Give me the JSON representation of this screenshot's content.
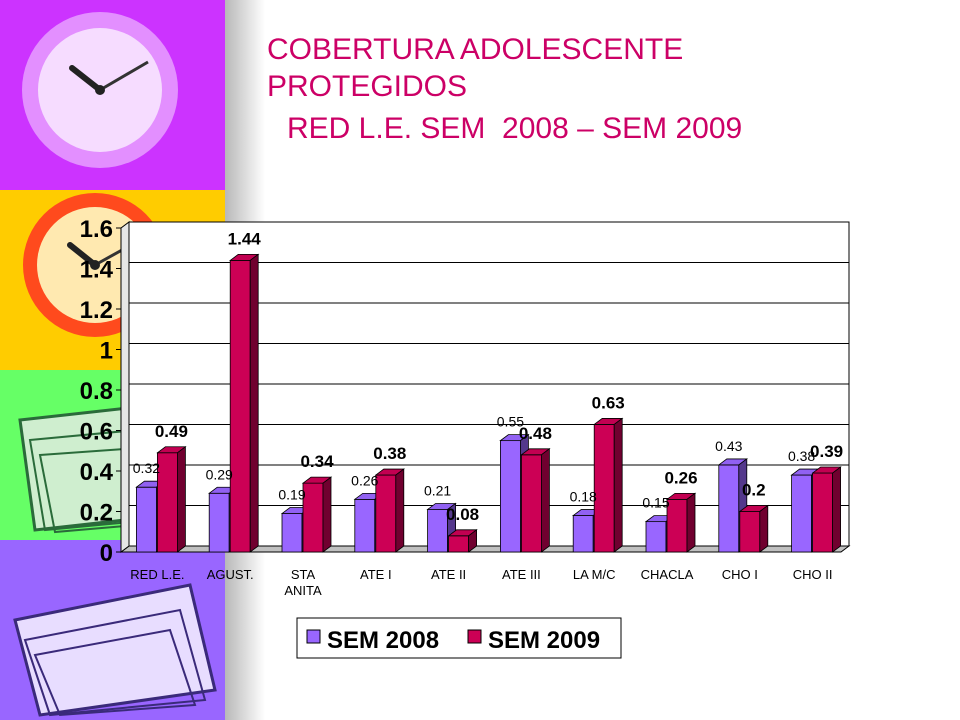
{
  "slide": {
    "title_lines": [
      "COBERTURA ADOLESCENTE",
      "PROTEGIDOS",
      "RED L.E. SEM  2008 – SEM 2009"
    ],
    "title_color": "#cc0066",
    "decor_colors": [
      "#cc33ff",
      "#ffcc00",
      "#66ff66",
      "#9966ff"
    ]
  },
  "chart_data": {
    "type": "bar",
    "title": "",
    "xlabel": "",
    "ylabel": "",
    "ylim": [
      0,
      1.6
    ],
    "yticks": [
      "0",
      "0.2",
      "0.4",
      "0.6",
      "0.8",
      "1",
      "1.2",
      "1.4",
      "1.6"
    ],
    "categories": [
      "RED L.E.",
      "AGUST.",
      "STA ANITA",
      "ATE I",
      "ATE II",
      "ATE III",
      "LA M/C",
      "CHACLA",
      "CHO I",
      "CHO II"
    ],
    "series": [
      {
        "name": "SEM 2008",
        "color": "#9966ff",
        "values": [
          0.32,
          0.29,
          0.19,
          0.26,
          0.21,
          0.55,
          0.18,
          0.15,
          0.43,
          0.38
        ],
        "labels": [
          "0.32",
          "0.29",
          "0.19",
          "0.26",
          "0.21",
          "0.55",
          "0.18",
          "0.15",
          "0.43",
          "0.38"
        ]
      },
      {
        "name": "SEM 2009",
        "color": "#cc0055",
        "values": [
          0.49,
          1.44,
          0.34,
          0.38,
          0.08,
          0.48,
          0.63,
          0.26,
          0.2,
          0.39
        ],
        "labels": [
          "0.49",
          "1.44",
          "0.34",
          "0.38",
          "0.08",
          "0.48",
          "0.63",
          "0.26",
          "0.2",
          "0.39"
        ]
      }
    ],
    "grid": true,
    "legend": "bottom"
  }
}
